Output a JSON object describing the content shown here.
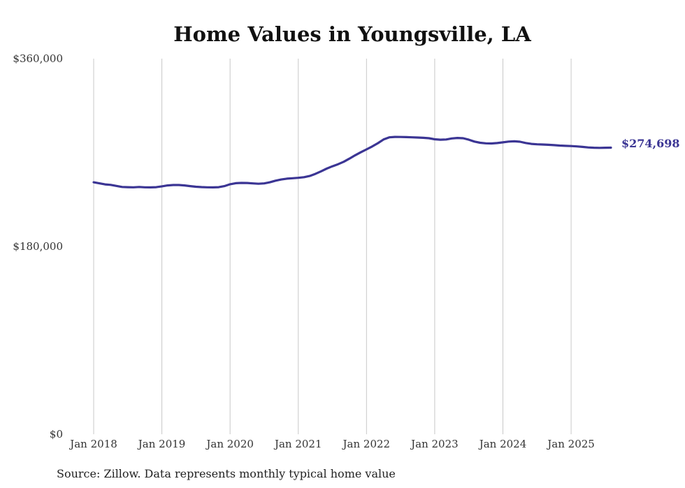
{
  "chart_data": {
    "type": "line",
    "title": "Home Values in Youngsville, LA",
    "y_tick_labels": [
      "$0",
      "$180,000",
      "$360,000"
    ],
    "y_ticks": [
      0,
      180000,
      360000
    ],
    "ylim": [
      0,
      360000
    ],
    "x_tick_labels": [
      "Jan 2018",
      "Jan 2019",
      "Jan 2020",
      "Jan 2021",
      "Jan 2022",
      "Jan 2023",
      "Jan 2024",
      "Jan 2025"
    ],
    "x_ticks": [
      "2018-01",
      "2019-01",
      "2020-01",
      "2021-01",
      "2022-01",
      "2023-01",
      "2024-01",
      "2025-01"
    ],
    "xlim": [
      "2018-01",
      "2025-08"
    ],
    "grid": "vertical",
    "color": "#3b3594",
    "end_label": "$274,698",
    "source": "Source: Zillow. Data represents monthly typical home value",
    "series": [
      {
        "x": [
          "2018-01",
          "2018-02",
          "2018-03",
          "2018-04",
          "2018-05",
          "2018-06",
          "2018-07",
          "2018-08",
          "2018-09",
          "2018-10",
          "2018-11",
          "2018-12",
          "2019-01",
          "2019-02",
          "2019-03",
          "2019-04",
          "2019-05",
          "2019-06",
          "2019-07",
          "2019-08",
          "2019-09",
          "2019-10",
          "2019-11",
          "2019-12",
          "2020-01",
          "2020-02",
          "2020-03",
          "2020-04",
          "2020-05",
          "2020-06",
          "2020-07",
          "2020-08",
          "2020-09",
          "2020-10",
          "2020-11",
          "2020-12",
          "2021-01",
          "2021-02",
          "2021-03",
          "2021-04",
          "2021-05",
          "2021-06",
          "2021-07",
          "2021-08",
          "2021-09",
          "2021-10",
          "2021-11",
          "2021-12",
          "2022-01",
          "2022-02",
          "2022-03",
          "2022-04",
          "2022-05",
          "2022-06",
          "2022-07",
          "2022-08",
          "2022-09",
          "2022-10",
          "2022-11",
          "2022-12",
          "2023-01",
          "2023-02",
          "2023-03",
          "2023-04",
          "2023-05",
          "2023-06",
          "2023-07",
          "2023-08",
          "2023-09",
          "2023-10",
          "2023-11",
          "2023-12",
          "2024-01",
          "2024-02",
          "2024-03",
          "2024-04",
          "2024-05",
          "2024-06",
          "2024-07",
          "2024-08",
          "2024-09",
          "2024-10",
          "2024-11",
          "2024-12",
          "2025-01",
          "2025-02",
          "2025-03",
          "2025-04",
          "2025-05",
          "2025-06",
          "2025-07",
          "2025-08"
        ],
        "y": [
          241500,
          240500,
          239500,
          239000,
          238000,
          237000,
          236800,
          236700,
          237000,
          236700,
          236600,
          236800,
          237600,
          238500,
          238900,
          238900,
          238500,
          237800,
          237200,
          236900,
          236700,
          236600,
          236800,
          237800,
          239600,
          240600,
          240900,
          240800,
          240400,
          240100,
          240400,
          241500,
          243000,
          244200,
          245000,
          245400,
          245800,
          246400,
          247500,
          249500,
          252000,
          254600,
          256800,
          258800,
          261200,
          264200,
          267400,
          270300,
          273000,
          275800,
          279000,
          282500,
          284600,
          285000,
          284900,
          284800,
          284600,
          284400,
          284100,
          283700,
          282700,
          282300,
          282500,
          283500,
          284000,
          283700,
          282300,
          280500,
          279400,
          278800,
          278700,
          279100,
          279800,
          280500,
          280800,
          280400,
          279200,
          278300,
          277900,
          277700,
          277400,
          277100,
          276700,
          276400,
          276200,
          275900,
          275400,
          274900,
          274600,
          274500,
          274600,
          274698
        ]
      }
    ]
  }
}
